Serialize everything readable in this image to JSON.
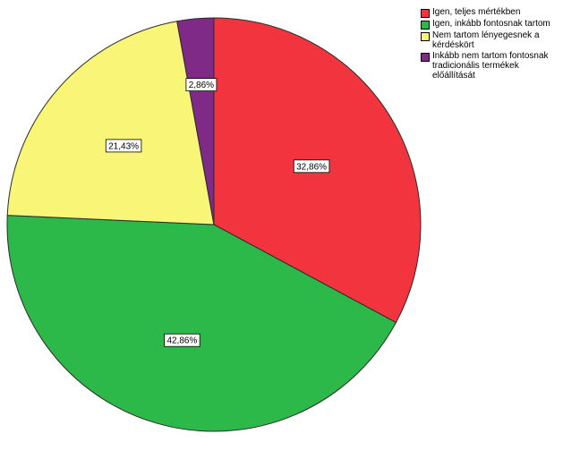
{
  "chart_data": {
    "type": "pie",
    "categories": [
      "Igen, teljes mértékben",
      "Igen, inkább fontosnak tartom",
      "Nem tartom lényegesnek a kérdéskört",
      "Inkább nem tartom fontosnak tradicionális termékek előállítását"
    ],
    "values": [
      32.86,
      42.86,
      21.43,
      2.86
    ],
    "data_labels": [
      "32,86%",
      "42,86%",
      "21,43%",
      "2,86%"
    ],
    "colors": [
      "#f2343f",
      "#2db84a",
      "#f9f577",
      "#7e2a86"
    ],
    "start_angle": "12 o'clock",
    "direction": "clockwise",
    "legend_position": "top-right",
    "title": "",
    "legend_labels": [
      "Igen, teljes mértékben",
      "Igen, inkább fontosnak tartom",
      "Nem tartom lényegesnek a kérdéskört",
      "Inkább nem tartom fontosnak tradicionális termékek előállítását"
    ]
  }
}
